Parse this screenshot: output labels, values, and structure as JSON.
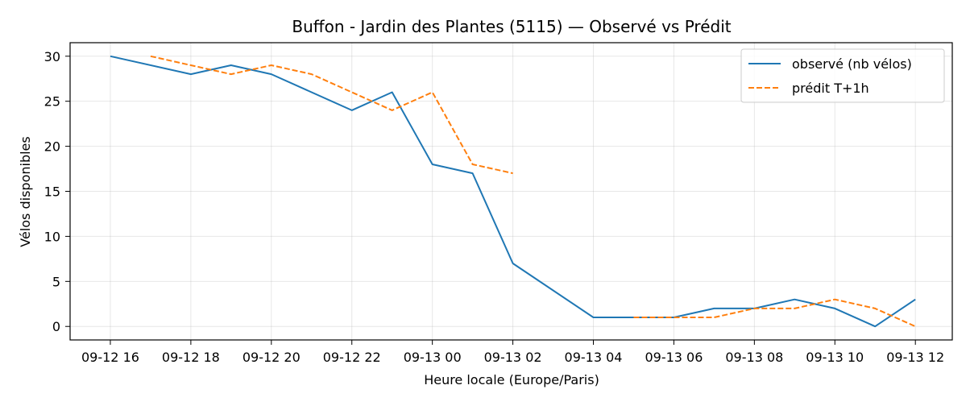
{
  "chart_data": {
    "type": "line",
    "title": "Buffon - Jardin des Plantes (5115) — Observé vs Prédit",
    "xlabel": "Heure locale (Europe/Paris)",
    "ylabel": "Vélos disponibles",
    "x_ticks": [
      "09-12 16",
      "09-12 18",
      "09-12 20",
      "09-12 22",
      "09-13 00",
      "09-13 02",
      "09-13 04",
      "09-13 06",
      "09-13 08",
      "09-13 10",
      "09-13 12"
    ],
    "y_ticks": [
      0,
      5,
      10,
      15,
      20,
      25,
      30
    ],
    "xlim": [
      "2024-09-12T15:00",
      "2024-09-13T12:55"
    ],
    "ylim": [
      -1.5,
      31.5
    ],
    "grid": true,
    "legend_position": "top-right",
    "series": [
      {
        "name": "observé (nb vélos)",
        "color": "#1f77b4",
        "style": "solid",
        "x": [
          "2024-09-12T16:00",
          "2024-09-12T18:00",
          "2024-09-12T19:00",
          "2024-09-12T20:00",
          "2024-09-12T22:00",
          "2024-09-12T23:00",
          "2024-09-13T00:00",
          "2024-09-13T01:00",
          "2024-09-13T02:00",
          "2024-09-13T04:00",
          "2024-09-13T06:00",
          "2024-09-13T07:00",
          "2024-09-13T08:00",
          "2024-09-13T09:00",
          "2024-09-13T10:00",
          "2024-09-13T11:00",
          "2024-09-13T12:00"
        ],
        "values": [
          30,
          28,
          29,
          28,
          24,
          26,
          18,
          17,
          7,
          1,
          1,
          2,
          2,
          3,
          2,
          0,
          3
        ]
      },
      {
        "name": "prédit T+1h",
        "color": "#ff7f0e",
        "style": "dashed",
        "segments": [
          {
            "x": [
              "2024-09-12T17:00",
              "2024-09-12T18:00",
              "2024-09-12T19:00",
              "2024-09-12T20:00",
              "2024-09-12T21:00",
              "2024-09-12T22:00",
              "2024-09-12T23:00",
              "2024-09-13T00:00",
              "2024-09-13T01:00",
              "2024-09-13T02:00"
            ],
            "values": [
              30,
              29,
              28,
              29,
              28,
              26,
              24,
              26,
              18,
              17
            ]
          },
          {
            "x": [
              "2024-09-13T05:00",
              "2024-09-13T06:00",
              "2024-09-13T07:00",
              "2024-09-13T08:00",
              "2024-09-13T09:00",
              "2024-09-13T10:00",
              "2024-09-13T11:00",
              "2024-09-13T12:00"
            ],
            "values": [
              1,
              1,
              1,
              2,
              2,
              3,
              2,
              0
            ]
          }
        ]
      }
    ]
  }
}
